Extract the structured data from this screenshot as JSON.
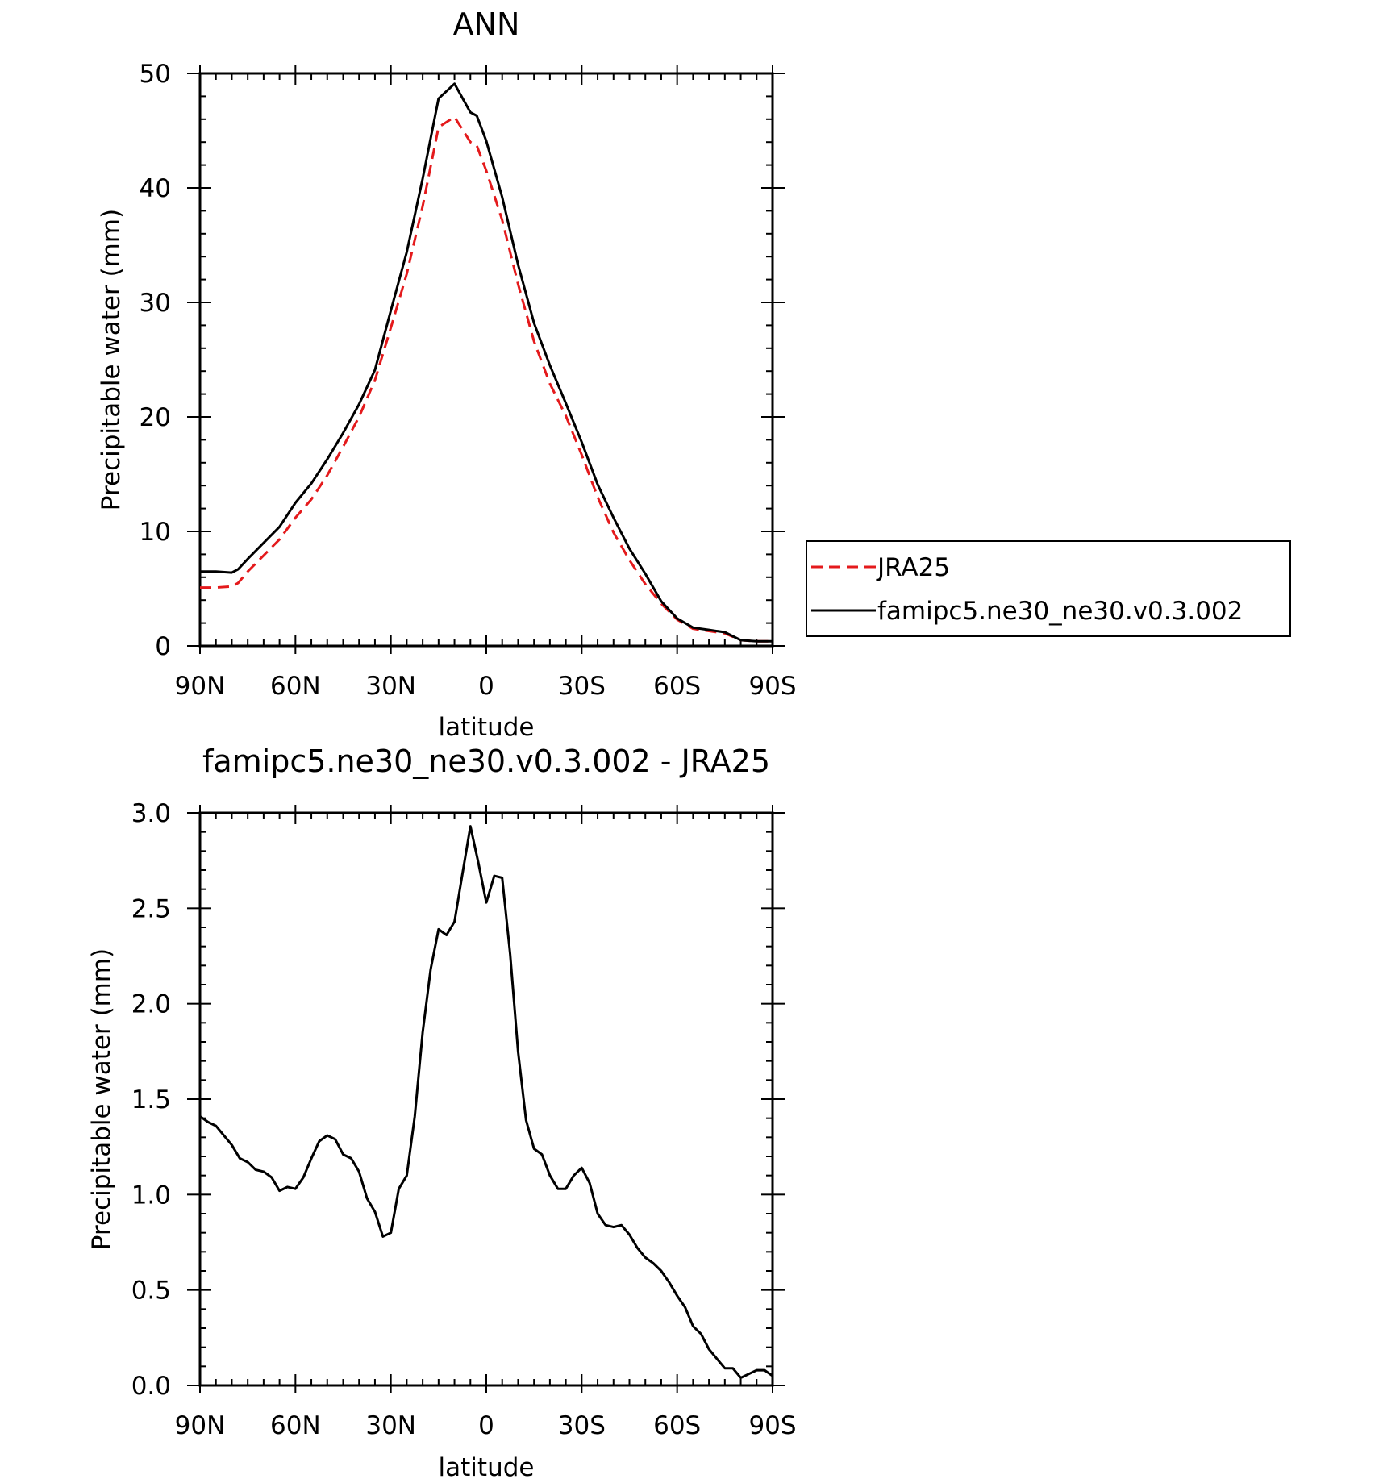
{
  "chart_data": [
    {
      "type": "line",
      "title": "ANN",
      "xlabel": "latitude",
      "ylabel": "Precipitable water (mm)",
      "xlim": [
        90,
        -90
      ],
      "ylim": [
        0,
        50
      ],
      "grid": false,
      "legend_position": "right",
      "x_ticks": [
        90,
        60,
        30,
        0,
        -30,
        -60,
        -90
      ],
      "x_tick_labels": [
        "90N",
        "60N",
        "30N",
        "0",
        "30S",
        "60S",
        "90S"
      ],
      "y_ticks": [
        0,
        10,
        20,
        30,
        40,
        50
      ],
      "y_tick_labels": [
        "0",
        "10",
        "20",
        "30",
        "40",
        "50"
      ],
      "series": [
        {
          "name": "JRA25",
          "color": "#e41a1c",
          "dash": "dashed",
          "x": [
            90,
            85,
            80,
            78,
            75,
            70,
            65,
            60,
            55,
            50,
            45,
            40,
            35,
            30,
            25,
            20,
            15,
            10,
            5,
            3,
            0,
            -5,
            -10,
            -15,
            -20,
            -25,
            -30,
            -35,
            -40,
            -45,
            -50,
            -55,
            -60,
            -65,
            -70,
            -75,
            -80,
            -85,
            -90
          ],
          "values": [
            5.1,
            5.1,
            5.2,
            5.5,
            6.5,
            7.9,
            9.3,
            11.2,
            12.8,
            14.9,
            17.4,
            20,
            23.2,
            27.8,
            32.5,
            38.4,
            45.3,
            46.2,
            44,
            43.7,
            41.5,
            37.2,
            31.6,
            26.6,
            22.9,
            20.1,
            16.7,
            13,
            9.9,
            7.5,
            5.4,
            3.7,
            2.3,
            1.5,
            1.3,
            1.1,
            0.5,
            0.4,
            0.4
          ]
        },
        {
          "name": "famipc5.ne30_ne30.v0.3.002",
          "color": "#000000",
          "dash": "solid",
          "x": [
            90,
            85,
            80,
            78,
            75,
            70,
            65,
            60,
            55,
            50,
            45,
            40,
            35,
            30,
            25,
            20,
            15,
            10,
            5,
            3,
            0,
            -5,
            -10,
            -15,
            -20,
            -25,
            -30,
            -35,
            -40,
            -45,
            -50,
            -55,
            -60,
            -65,
            -70,
            -75,
            -80,
            -85,
            -90
          ],
          "values": [
            6.5,
            6.5,
            6.4,
            6.7,
            7.6,
            9,
            10.4,
            12.5,
            14.2,
            16.3,
            18.6,
            21.1,
            24.1,
            29.3,
            34.4,
            40.8,
            47.8,
            49.1,
            46.6,
            46.3,
            44.1,
            39.2,
            33.3,
            28.2,
            24.5,
            21.2,
            17.8,
            14.1,
            11.2,
            8.5,
            6.3,
            3.9,
            2.4,
            1.6,
            1.4,
            1.2,
            0.5,
            0.4,
            0.4
          ]
        }
      ]
    },
    {
      "type": "line",
      "title": "famipc5.ne30_ne30.v0.3.002 - JRA25",
      "xlabel": "latitude",
      "ylabel": "Precipitable water (mm)",
      "xlim": [
        90,
        -90
      ],
      "ylim": [
        0,
        3.0
      ],
      "grid": false,
      "x_ticks": [
        90,
        60,
        30,
        0,
        -30,
        -60,
        -90
      ],
      "x_tick_labels": [
        "90N",
        "60N",
        "30N",
        "0",
        "30S",
        "60S",
        "90S"
      ],
      "y_ticks": [
        0,
        0.5,
        1.0,
        1.5,
        2.0,
        2.5,
        3.0
      ],
      "y_tick_labels": [
        "0.0",
        "0.5",
        "1.0",
        "1.5",
        "2.0",
        "2.5",
        "3.0"
      ],
      "series": [
        {
          "color": "#000000",
          "dash": "solid",
          "x": [
            90,
            87.5,
            85,
            82.5,
            80,
            77.5,
            75,
            72.5,
            70,
            67.5,
            65,
            62.5,
            60,
            57.5,
            55,
            52.5,
            50,
            47.5,
            45,
            42.5,
            40,
            37.5,
            35,
            32.5,
            30,
            27.5,
            25,
            22.5,
            20,
            17.5,
            15,
            12.5,
            10,
            7.5,
            5,
            2.5,
            0,
            -2.5,
            -5,
            -7.5,
            -10,
            -12.5,
            -15,
            -17.5,
            -20,
            -22.5,
            -25,
            -27.5,
            -30,
            -32.5,
            -35,
            -37.5,
            -40,
            -42.5,
            -45,
            -47.5,
            -50,
            -52.5,
            -55,
            -57.5,
            -60,
            -62.5,
            -65,
            -67.5,
            -70,
            -72.5,
            -75,
            -77.5,
            -80,
            -82.5,
            -85,
            -87.5,
            -90
          ],
          "values": [
            1.41,
            1.38,
            1.36,
            1.31,
            1.26,
            1.19,
            1.17,
            1.13,
            1.12,
            1.09,
            1.02,
            1.04,
            1.03,
            1.09,
            1.19,
            1.28,
            1.31,
            1.29,
            1.21,
            1.19,
            1.12,
            0.98,
            0.91,
            0.78,
            0.8,
            1.03,
            1.1,
            1.41,
            1.85,
            2.18,
            2.39,
            2.36,
            2.43,
            2.68,
            2.93,
            2.74,
            2.53,
            2.67,
            2.66,
            2.26,
            1.75,
            1.39,
            1.24,
            1.21,
            1.1,
            1.03,
            1.03,
            1.1,
            1.14,
            1.06,
            0.9,
            0.84,
            0.83,
            0.84,
            0.79,
            0.72,
            0.67,
            0.64,
            0.6,
            0.54,
            0.47,
            0.41,
            0.31,
            0.27,
            0.19,
            0.14,
            0.09,
            0.09,
            0.04,
            0.06,
            0.08,
            0.08,
            0.05
          ]
        }
      ]
    }
  ]
}
